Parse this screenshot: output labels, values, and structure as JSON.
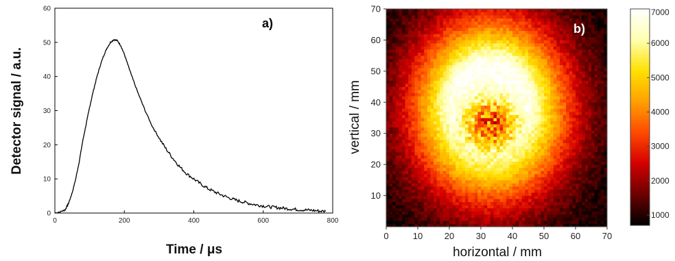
{
  "chart_data": [
    {
      "type": "line",
      "panel_label": "a)",
      "xlabel": "Time / μs",
      "ylabel": "Detector signal / a.u.",
      "xlim": [
        0,
        800
      ],
      "ylim": [
        0,
        60
      ],
      "xticks": [
        0,
        200,
        400,
        600,
        800
      ],
      "yticks": [
        0,
        10,
        20,
        30,
        40,
        50,
        60
      ],
      "x": [
        0,
        20,
        30,
        35,
        40,
        50,
        60,
        70,
        80,
        90,
        100,
        110,
        120,
        130,
        140,
        150,
        160,
        170,
        180,
        190,
        200,
        210,
        220,
        240,
        260,
        280,
        300,
        320,
        340,
        360,
        380,
        400,
        420,
        440,
        460,
        480,
        500,
        520,
        540,
        560,
        580,
        600,
        620,
        640,
        660,
        680,
        700,
        720,
        740,
        760,
        780
      ],
      "values": [
        0,
        0.5,
        1,
        2,
        3,
        6,
        10,
        15,
        21,
        26,
        31,
        35.5,
        39.5,
        43,
        46,
        48.3,
        50,
        50.8,
        50.5,
        49,
        46.5,
        43.5,
        40.5,
        35,
        30,
        25.5,
        22,
        18.8,
        16,
        13.5,
        11.5,
        10,
        8.5,
        7.2,
        6.2,
        5.3,
        4.5,
        3.8,
        3.3,
        2.8,
        2.4,
        2.1,
        1.8,
        1.6,
        1.4,
        1.2,
        1.0,
        0.9,
        0.8,
        0.6,
        0.5
      ],
      "line_color": "#000000"
    },
    {
      "type": "heatmap",
      "panel_label": "b)",
      "xlabel": "horizontal / mm",
      "ylabel": "vertical / mm",
      "xlim": [
        0,
        70
      ],
      "ylim": [
        0,
        70
      ],
      "xticks": [
        0,
        10,
        20,
        30,
        40,
        50,
        60,
        70
      ],
      "yticks": [
        10,
        20,
        30,
        40,
        50,
        60,
        70
      ],
      "distribution": {
        "center_x": 33,
        "center_y": 38,
        "sigma_x": 16,
        "sigma_y": 19,
        "background": 700,
        "peak": 7000,
        "central_dip_center": [
          33,
          33
        ],
        "central_dip_sigma": 6,
        "central_dip_depth": 3500
      },
      "colorbar": {
        "min": 700,
        "max": 7000,
        "ticks": [
          1000,
          2000,
          3000,
          4000,
          5000,
          6000,
          7000
        ],
        "colormap": [
          "#000000",
          "#6b0000",
          "#d40000",
          "#ff4a00",
          "#ffa000",
          "#ffe100",
          "#ffffb0",
          "#ffffff"
        ]
      }
    }
  ]
}
